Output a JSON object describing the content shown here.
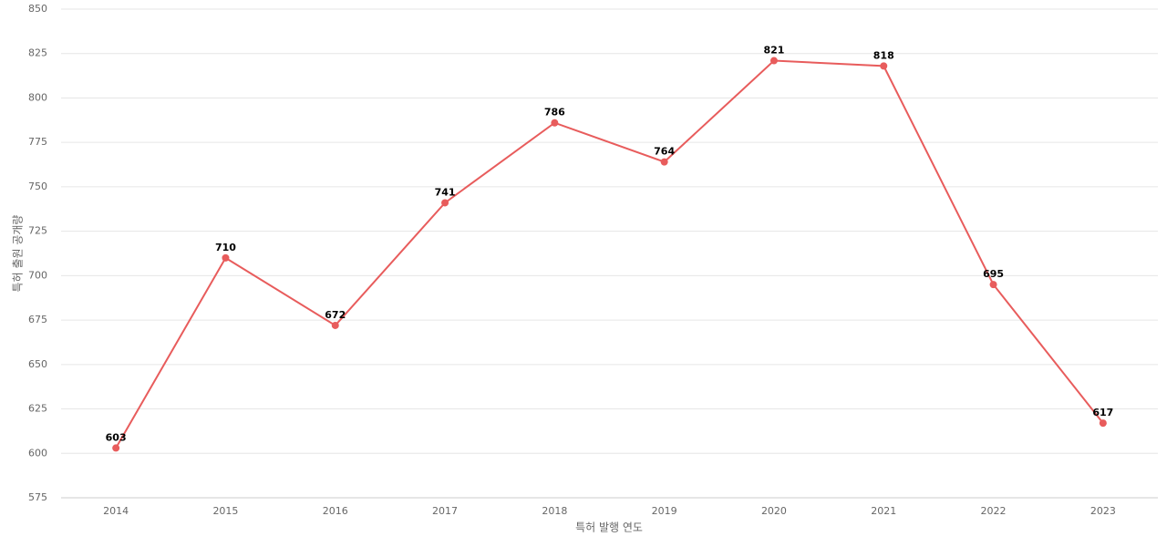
{
  "chart_data": {
    "type": "line",
    "x_label": "특허 발행 연도",
    "y_label": "특허 출원 공개량",
    "categories": [
      "2014",
      "2015",
      "2016",
      "2017",
      "2018",
      "2019",
      "2020",
      "2021",
      "2022",
      "2023"
    ],
    "series": [
      {
        "name": "특허 출원 공개량",
        "color": "#e85c5c",
        "values": [
          603,
          710,
          672,
          741,
          786,
          764,
          821,
          818,
          695,
          617
        ]
      }
    ],
    "ylim": [
      575,
      850
    ],
    "yticks": [
      575,
      600,
      625,
      650,
      675,
      700,
      725,
      750,
      775,
      800,
      825,
      850
    ],
    "grid": true
  }
}
